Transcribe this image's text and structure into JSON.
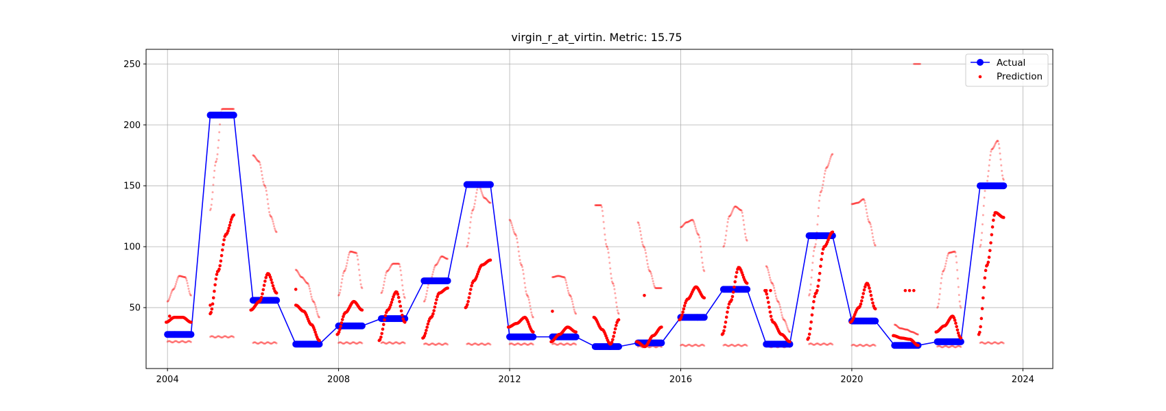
{
  "chart_data": {
    "type": "line",
    "title": "virgin_r_at_virtin. Metric: 15.75",
    "xlabel": "",
    "ylabel": "",
    "xlim": [
      2003.5,
      2024.7
    ],
    "ylim": [
      0,
      262
    ],
    "xticks": [
      2004,
      2008,
      2012,
      2016,
      2020,
      2024
    ],
    "yticks": [
      50,
      100,
      150,
      200,
      250
    ],
    "grid": true,
    "legend": {
      "position": "top-right",
      "entries": [
        "Actual",
        "Prediction"
      ]
    },
    "colors": {
      "actual": "#0000ff",
      "prediction": "#ff0000",
      "grid": "#b0b0b0"
    },
    "actual": {
      "name": "Actual",
      "segments": [
        {
          "x0": 2004.0,
          "x1": 2004.55,
          "y": 28
        },
        {
          "x0": 2005.0,
          "x1": 2005.55,
          "y": 208
        },
        {
          "x0": 2006.0,
          "x1": 2006.55,
          "y": 56
        },
        {
          "x0": 2007.0,
          "x1": 2007.55,
          "y": 20
        },
        {
          "x0": 2008.0,
          "x1": 2008.55,
          "y": 35
        },
        {
          "x0": 2009.0,
          "x1": 2009.55,
          "y": 41
        },
        {
          "x0": 2010.0,
          "x1": 2010.55,
          "y": 72
        },
        {
          "x0": 2011.0,
          "x1": 2011.55,
          "y": 151
        },
        {
          "x0": 2012.0,
          "x1": 2012.55,
          "y": 26
        },
        {
          "x0": 2013.0,
          "x1": 2013.55,
          "y": 26
        },
        {
          "x0": 2014.0,
          "x1": 2014.55,
          "y": 18
        },
        {
          "x0": 2015.0,
          "x1": 2015.55,
          "y": 21
        },
        {
          "x0": 2016.0,
          "x1": 2016.55,
          "y": 42
        },
        {
          "x0": 2017.0,
          "x1": 2017.55,
          "y": 65
        },
        {
          "x0": 2018.0,
          "x1": 2018.55,
          "y": 20
        },
        {
          "x0": 2019.0,
          "x1": 2019.55,
          "y": 109
        },
        {
          "x0": 2020.0,
          "x1": 2020.55,
          "y": 39
        },
        {
          "x0": 2021.0,
          "x1": 2021.55,
          "y": 19
        },
        {
          "x0": 2022.0,
          "x1": 2022.55,
          "y": 22
        },
        {
          "x0": 2023.0,
          "x1": 2023.55,
          "y": 150
        }
      ]
    },
    "prediction": {
      "name": "Prediction",
      "main": [
        {
          "x0": 2003.97,
          "x1": 2004.55,
          "y": [
            38,
            42,
            42,
            38
          ]
        },
        {
          "x0": 2005.0,
          "x1": 2005.55,
          "y": [
            45,
            80,
            110,
            126
          ]
        },
        {
          "x0": 2005.95,
          "x1": 2006.55,
          "y": [
            48,
            55,
            78,
            62
          ]
        },
        {
          "x0": 2007.0,
          "x1": 2007.55,
          "y": [
            52,
            47,
            36,
            23
          ]
        },
        {
          "x0": 2007.97,
          "x1": 2008.55,
          "y": [
            28,
            46,
            55,
            48
          ]
        },
        {
          "x0": 2008.95,
          "x1": 2009.55,
          "y": [
            23,
            48,
            63,
            38
          ]
        },
        {
          "x0": 2009.97,
          "x1": 2010.55,
          "y": [
            25,
            42,
            62,
            66
          ]
        },
        {
          "x0": 2010.97,
          "x1": 2011.55,
          "y": [
            50,
            72,
            85,
            89
          ]
        },
        {
          "x0": 2011.97,
          "x1": 2012.55,
          "y": [
            34,
            37,
            42,
            30
          ]
        },
        {
          "x0": 2012.97,
          "x1": 2013.55,
          "y": [
            22,
            28,
            34,
            30
          ]
        },
        {
          "x0": 2013.97,
          "x1": 2014.55,
          "y": [
            42,
            32,
            20,
            40
          ]
        },
        {
          "x0": 2014.97,
          "x1": 2015.55,
          "y": [
            22,
            18,
            27,
            34
          ]
        },
        {
          "x0": 2015.97,
          "x1": 2016.55,
          "y": [
            40,
            57,
            67,
            58
          ]
        },
        {
          "x0": 2016.97,
          "x1": 2017.55,
          "y": [
            28,
            55,
            83,
            70
          ]
        },
        {
          "x0": 2017.97,
          "x1": 2018.55,
          "y": [
            64,
            38,
            28,
            22
          ]
        },
        {
          "x0": 2018.97,
          "x1": 2019.55,
          "y": [
            24,
            62,
            100,
            112
          ]
        },
        {
          "x0": 2019.97,
          "x1": 2020.55,
          "y": [
            38,
            50,
            70,
            49
          ]
        },
        {
          "x0": 2020.97,
          "x1": 2021.55,
          "y": [
            27,
            25,
            24,
            19
          ]
        },
        {
          "x0": 2021.97,
          "x1": 2022.55,
          "y": [
            30,
            35,
            43,
            25
          ]
        },
        {
          "x0": 2022.97,
          "x1": 2023.55,
          "y": [
            28,
            85,
            128,
            124
          ]
        }
      ],
      "extra": [
        {
          "x": 2004.05,
          "y": 43
        },
        {
          "x": 2005.0,
          "y": 52
        },
        {
          "x": 2007.0,
          "y": 65
        },
        {
          "x": 2013.0,
          "y": 47
        },
        {
          "x": 2015.15,
          "y": 60
        },
        {
          "x": 2018.0,
          "y": 64
        },
        {
          "x": 2018.1,
          "y": 64
        },
        {
          "x": 2021.25,
          "y": 64
        },
        {
          "x": 2021.35,
          "y": 64
        },
        {
          "x": 2021.45,
          "y": 64
        }
      ],
      "faint_upper": [
        {
          "x0": 2004.0,
          "x1": 2004.55,
          "y": [
            55,
            65,
            76,
            75,
            60
          ]
        },
        {
          "x0": 2005.0,
          "x1": 2005.55,
          "y": [
            130,
            170,
            213,
            213,
            213
          ]
        },
        {
          "x0": 2006.0,
          "x1": 2006.55,
          "y": [
            175,
            170,
            150,
            125,
            112
          ]
        },
        {
          "x0": 2007.0,
          "x1": 2007.55,
          "y": [
            81,
            75,
            70,
            55,
            42
          ]
        },
        {
          "x0": 2008.0,
          "x1": 2008.55,
          "y": [
            60,
            80,
            96,
            95,
            66
          ]
        },
        {
          "x0": 2009.0,
          "x1": 2009.55,
          "y": [
            62,
            80,
            86,
            86,
            58
          ]
        },
        {
          "x0": 2010.0,
          "x1": 2010.55,
          "y": [
            55,
            72,
            85,
            92,
            90
          ]
        },
        {
          "x0": 2011.0,
          "x1": 2011.55,
          "y": [
            100,
            130,
            150,
            140,
            136
          ]
        },
        {
          "x0": 2012.0,
          "x1": 2012.55,
          "y": [
            122,
            110,
            85,
            60,
            42
          ]
        },
        {
          "x0": 2013.0,
          "x1": 2013.55,
          "y": [
            75,
            76,
            75,
            60,
            45
          ]
        },
        {
          "x0": 2014.0,
          "x1": 2014.55,
          "y": [
            134,
            134,
            100,
            70,
            45
          ]
        },
        {
          "x0": 2015.0,
          "x1": 2015.55,
          "y": [
            120,
            100,
            80,
            66,
            66
          ]
        },
        {
          "x0": 2016.0,
          "x1": 2016.55,
          "y": [
            116,
            120,
            122,
            110,
            80
          ]
        },
        {
          "x0": 2017.0,
          "x1": 2017.55,
          "y": [
            100,
            125,
            133,
            130,
            105
          ]
        },
        {
          "x0": 2018.0,
          "x1": 2018.55,
          "y": [
            84,
            70,
            55,
            40,
            30
          ]
        },
        {
          "x0": 2019.0,
          "x1": 2019.55,
          "y": [
            60,
            100,
            145,
            165,
            176
          ]
        },
        {
          "x0": 2020.0,
          "x1": 2020.55,
          "y": [
            135,
            136,
            139,
            120,
            101
          ]
        },
        {
          "x0": 2021.0,
          "x1": 2021.55,
          "y": [
            36,
            33,
            32,
            30,
            28
          ]
        },
        {
          "x0": 2022.0,
          "x1": 2022.55,
          "y": [
            50,
            80,
            95,
            96,
            50
          ]
        },
        {
          "x0": 2023.0,
          "x1": 2023.55,
          "y": [
            100,
            150,
            180,
            187,
            155
          ]
        }
      ],
      "faint_lower": [
        {
          "x0": 2004.0,
          "x1": 2004.55,
          "y": 22
        },
        {
          "x0": 2005.0,
          "x1": 2005.55,
          "y": 26
        },
        {
          "x0": 2006.0,
          "x1": 2006.55,
          "y": 21
        },
        {
          "x0": 2007.0,
          "x1": 2007.55,
          "y": 20
        },
        {
          "x0": 2008.0,
          "x1": 2008.55,
          "y": 21
        },
        {
          "x0": 2009.0,
          "x1": 2009.55,
          "y": 21
        },
        {
          "x0": 2010.0,
          "x1": 2010.55,
          "y": 20
        },
        {
          "x0": 2011.0,
          "x1": 2011.55,
          "y": 20
        },
        {
          "x0": 2012.0,
          "x1": 2012.55,
          "y": 20
        },
        {
          "x0": 2013.0,
          "x1": 2013.55,
          "y": 20
        },
        {
          "x0": 2014.0,
          "x1": 2014.55,
          "y": 18
        },
        {
          "x0": 2015.0,
          "x1": 2015.55,
          "y": 18
        },
        {
          "x0": 2016.0,
          "x1": 2016.55,
          "y": 19
        },
        {
          "x0": 2017.0,
          "x1": 2017.55,
          "y": 19
        },
        {
          "x0": 2018.0,
          "x1": 2018.55,
          "y": 18
        },
        {
          "x0": 2019.0,
          "x1": 2019.55,
          "y": 20
        },
        {
          "x0": 2020.0,
          "x1": 2020.55,
          "y": 19
        },
        {
          "x0": 2021.0,
          "x1": 2021.55,
          "y": 18
        },
        {
          "x0": 2022.0,
          "x1": 2022.55,
          "y": 18
        },
        {
          "x0": 2023.0,
          "x1": 2023.55,
          "y": 21
        }
      ],
      "outliers": [
        {
          "x0": 2021.45,
          "x1": 2021.6,
          "y": 250
        }
      ]
    }
  }
}
